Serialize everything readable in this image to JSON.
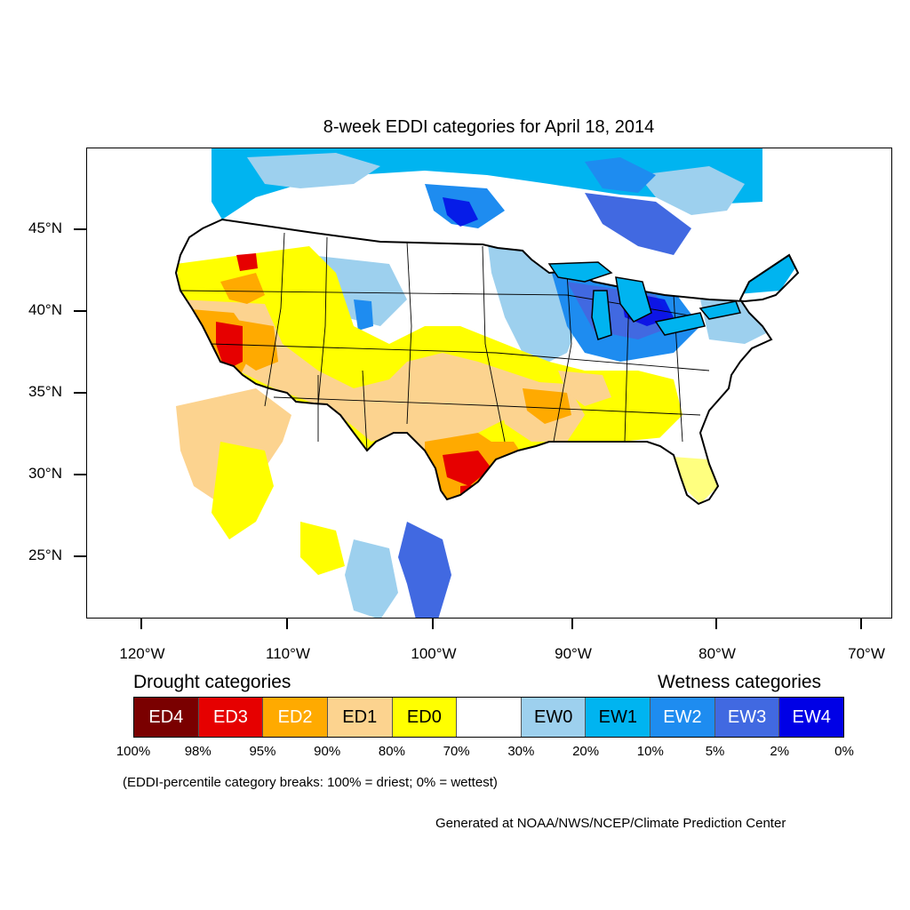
{
  "title": "8-week EDDI categories for April 18, 2014",
  "lat_labels": [
    "45°N",
    "40°N",
    "35°N",
    "30°N",
    "25°N"
  ],
  "lon_labels": [
    "120°W",
    "110°W",
    "100°W",
    "90°W",
    "80°W",
    "70°W"
  ],
  "legend": {
    "drought_title": "Drought categories",
    "wetness_title": "Wetness categories",
    "categories": [
      {
        "label": "ED4",
        "color": "#7a0000",
        "text_color": "#ffffff"
      },
      {
        "label": "ED3",
        "color": "#e60000",
        "text_color": "#ffffff"
      },
      {
        "label": "ED2",
        "color": "#ffaa00",
        "text_color": "#ffffff"
      },
      {
        "label": "ED1",
        "color": "#fcd38f",
        "text_color": "#000000"
      },
      {
        "label": "ED0",
        "color": "#ffff00",
        "text_color": "#000000"
      },
      {
        "label": "",
        "color": "#ffffff",
        "text_color": "#000000"
      },
      {
        "label": "EW0",
        "color": "#9dd0ee",
        "text_color": "#000000"
      },
      {
        "label": "EW1",
        "color": "#00b4f0",
        "text_color": "#000000"
      },
      {
        "label": "EW2",
        "color": "#1e8cf0",
        "text_color": "#ffffff"
      },
      {
        "label": "EW3",
        "color": "#4169e1",
        "text_color": "#ffffff"
      },
      {
        "label": "EW4",
        "color": "#0000e6",
        "text_color": "#ffffff"
      }
    ],
    "percent_breaks": [
      "100%",
      "98%",
      "95%",
      "90%",
      "80%",
      "70%",
      "30%",
      "20%",
      "10%",
      "5%",
      "2%",
      "0%"
    ]
  },
  "note": "(EDDI-percentile category breaks: 100% = driest; 0% = wettest)",
  "credit": "Generated at NOAA/NWS/NCEP/Climate Prediction Center"
}
